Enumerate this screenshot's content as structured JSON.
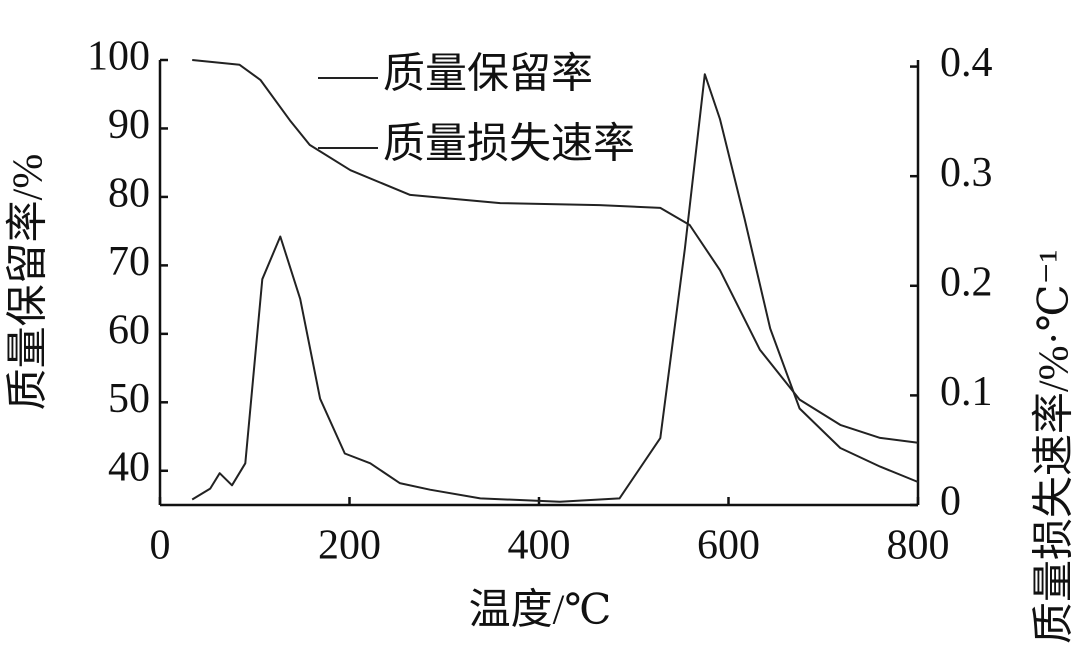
{
  "chart_data": {
    "type": "line",
    "xlabel": "温度/℃",
    "ylabel": "质量保留率/%",
    "y2label": "质量损失速率/%·℃⁻¹",
    "xlim": [
      0,
      800
    ],
    "xticks": [
      0,
      200,
      400,
      600,
      800
    ],
    "ylim": [
      35,
      100
    ],
    "yticks": [
      40,
      50,
      60,
      70,
      80,
      90,
      100
    ],
    "y2lim": [
      0,
      0.406
    ],
    "y2ticks": [
      0,
      0.1,
      0.2,
      0.3,
      0.4
    ],
    "series": [
      {
        "name": "质量保留率",
        "color": "#222222",
        "x": [
          34,
          84,
          106,
          137,
          158,
          201,
          264,
          359,
          464,
          528,
          559,
          591,
          633,
          675,
          718,
          760,
          800
        ],
        "values": [
          100,
          99.3,
          97.1,
          91.2,
          87.6,
          83.9,
          80.3,
          79.1,
          78.8,
          78.4,
          75.9,
          69.3,
          57.7,
          50.4,
          46.7,
          44.8,
          44.1
        ]
      },
      {
        "name": "质量损失速率",
        "color": "#222222",
        "axis": "y2",
        "x": [
          34,
          53,
          63,
          76,
          90,
          108,
          127,
          148,
          169,
          195,
          222,
          253,
          285,
          338,
          422,
          485,
          528,
          554,
          575,
          591,
          617,
          644,
          675,
          718,
          760,
          800
        ],
        "values": [
          0.005,
          0.015,
          0.029,
          0.018,
          0.038,
          0.206,
          0.245,
          0.188,
          0.097,
          0.047,
          0.038,
          0.02,
          0.014,
          0.006,
          0.003,
          0.006,
          0.061,
          0.234,
          0.393,
          0.352,
          0.261,
          0.161,
          0.088,
          0.052,
          0.035,
          0.021
        ]
      }
    ]
  }
}
